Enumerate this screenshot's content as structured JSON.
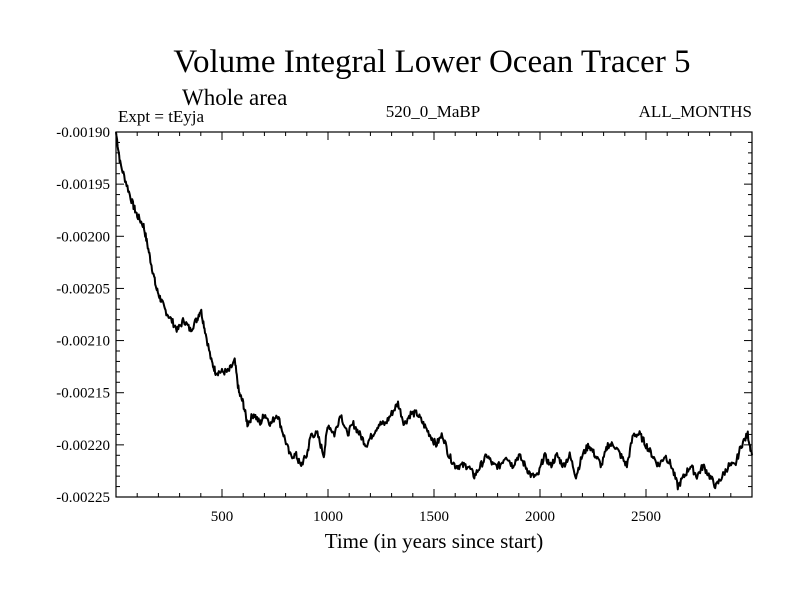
{
  "chart_data": {
    "type": "line",
    "title": "Volume Integral Lower Ocean Tracer 5",
    "subtitle": "Whole area",
    "experiment": "Expt = tEyja",
    "run_label": "520_0_MaBP",
    "period_label": "ALL_MONTHS",
    "xlabel": "Time (in years since start)",
    "ylabel": "",
    "xlim": [
      0,
      3000
    ],
    "ylim": [
      -0.00225,
      -0.0019
    ],
    "x_ticks": [
      500,
      1000,
      1500,
      2000,
      2500
    ],
    "x_tick_labels": [
      "500",
      "1000",
      "1500",
      "2000",
      "2500"
    ],
    "y_ticks": [
      -0.0019,
      -0.00195,
      -0.002,
      -0.00205,
      -0.0021,
      -0.00215,
      -0.0022,
      -0.00225
    ],
    "y_tick_labels": [
      "-0.00190",
      "-0.00195",
      "-0.00200",
      "-0.00205",
      "-0.00210",
      "-0.00215",
      "-0.00220",
      "-0.00225"
    ],
    "grid": false,
    "series": [
      {
        "name": "Lower Ocean Tracer 5",
        "color": "#000000",
        "x": [
          0,
          20,
          50,
          80,
          100,
          130,
          150,
          170,
          190,
          210,
          230,
          260,
          290,
          320,
          350,
          380,
          400,
          420,
          450,
          470,
          500,
          530,
          560,
          580,
          600,
          620,
          650,
          680,
          700,
          730,
          760,
          790,
          820,
          850,
          870,
          900,
          920,
          950,
          980,
          1000,
          1030,
          1060,
          1090,
          1120,
          1150,
          1180,
          1210,
          1240,
          1270,
          1300,
          1330,
          1360,
          1390,
          1420,
          1450,
          1480,
          1510,
          1540,
          1570,
          1600,
          1630,
          1660,
          1690,
          1720,
          1750,
          1780,
          1810,
          1840,
          1870,
          1900,
          1930,
          1960,
          1990,
          2020,
          2050,
          2080,
          2110,
          2140,
          2170,
          2200,
          2230,
          2260,
          2290,
          2320,
          2350,
          2380,
          2410,
          2440,
          2470,
          2500,
          2530,
          2560,
          2590,
          2620,
          2650,
          2680,
          2710,
          2740,
          2770,
          2800,
          2830,
          2860,
          2890,
          2920,
          2950,
          2980,
          3000
        ],
        "y": [
          -0.0019,
          -0.00193,
          -0.00195,
          -0.00197,
          -0.00198,
          -0.00199,
          -0.00201,
          -0.00203,
          -0.00205,
          -0.00206,
          -0.00207,
          -0.00208,
          -0.00209,
          -0.00208,
          -0.00209,
          -0.00208,
          -0.00207,
          -0.00209,
          -0.00212,
          -0.00213,
          -0.00213,
          -0.00213,
          -0.00212,
          -0.00215,
          -0.00216,
          -0.00218,
          -0.00217,
          -0.00218,
          -0.00217,
          -0.00218,
          -0.00217,
          -0.00219,
          -0.00221,
          -0.00221,
          -0.00222,
          -0.00221,
          -0.00219,
          -0.00219,
          -0.00221,
          -0.00218,
          -0.00219,
          -0.00217,
          -0.00219,
          -0.00218,
          -0.00219,
          -0.0022,
          -0.00219,
          -0.00218,
          -0.00218,
          -0.00217,
          -0.00216,
          -0.00218,
          -0.00217,
          -0.00217,
          -0.00218,
          -0.00219,
          -0.0022,
          -0.00219,
          -0.00221,
          -0.00222,
          -0.00222,
          -0.00222,
          -0.00223,
          -0.00222,
          -0.00221,
          -0.00222,
          -0.00222,
          -0.00221,
          -0.00222,
          -0.00221,
          -0.00222,
          -0.00223,
          -0.00223,
          -0.00221,
          -0.00222,
          -0.00221,
          -0.00222,
          -0.00221,
          -0.00223,
          -0.00221,
          -0.0022,
          -0.00221,
          -0.00222,
          -0.0022,
          -0.0022,
          -0.00221,
          -0.00222,
          -0.00219,
          -0.00219,
          -0.0022,
          -0.00221,
          -0.00222,
          -0.00221,
          -0.00222,
          -0.00224,
          -0.00223,
          -0.00222,
          -0.00223,
          -0.00222,
          -0.00223,
          -0.00224,
          -0.00223,
          -0.00222,
          -0.00222,
          -0.0022,
          -0.00219,
          -0.00221
        ]
      }
    ]
  }
}
